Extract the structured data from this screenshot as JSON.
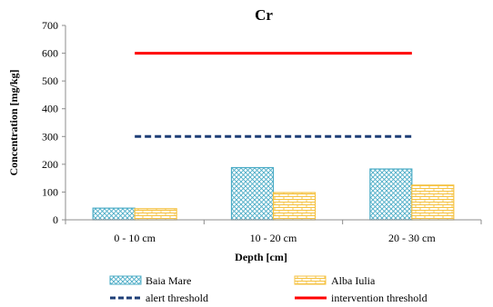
{
  "chart_data": {
    "type": "bar",
    "title": "Cr",
    "xlabel": "Depth [cm]",
    "ylabel": "Concentration  [mg/kg]",
    "ylim": [
      0,
      700
    ],
    "yticks": [
      0,
      100,
      200,
      300,
      400,
      500,
      600,
      700
    ],
    "categories": [
      "0 - 10 cm",
      "10 - 20 cm",
      "20 - 30 cm"
    ],
    "series": [
      {
        "name": "Baia Mare",
        "values": [
          42,
          188,
          183
        ],
        "color": "#4bacc6",
        "pattern": "crosshatch"
      },
      {
        "name": "Alba Iulia",
        "values": [
          40,
          98,
          125
        ],
        "color": "#f5c242",
        "pattern": "brick"
      }
    ],
    "thresholds": [
      {
        "name": "alert threshold",
        "value": 300,
        "color": "#1f3f77",
        "style": "dashed"
      },
      {
        "name": "intervention threshold",
        "value": 600,
        "color": "#ff0000",
        "style": "solid"
      }
    ],
    "grid": false,
    "legend_position": "bottom"
  }
}
